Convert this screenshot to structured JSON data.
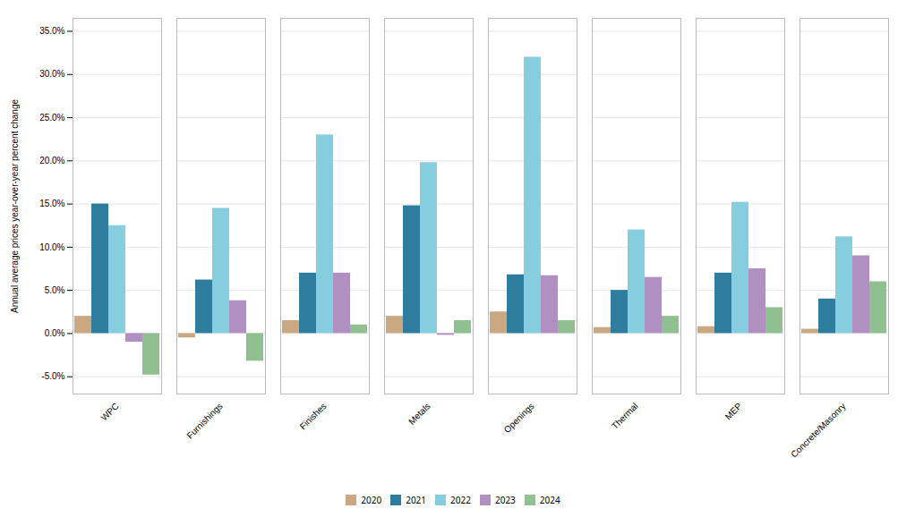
{
  "chart_data": {
    "type": "bar",
    "categories": [
      "WPC",
      "Furnishings",
      "Finishes",
      "Metals",
      "Openings",
      "Thermal",
      "MEP",
      "Concrete/Masonry"
    ],
    "series": [
      {
        "name": "2020",
        "color": "#c9a882",
        "values": [
          2.0,
          -0.5,
          1.5,
          2.0,
          2.5,
          0.7,
          0.8,
          0.5
        ]
      },
      {
        "name": "2021",
        "color": "#2e7d9e",
        "values": [
          15.0,
          6.2,
          7.0,
          14.8,
          6.8,
          5.0,
          7.0,
          4.0
        ]
      },
      {
        "name": "2022",
        "color": "#87cde0",
        "values": [
          12.5,
          14.5,
          23.0,
          19.8,
          32.0,
          12.0,
          15.2,
          11.2
        ]
      },
      {
        "name": "2023",
        "color": "#b090c0",
        "values": [
          -1.0,
          3.8,
          7.0,
          -0.2,
          6.7,
          6.5,
          7.5,
          9.0
        ]
      },
      {
        "name": "2024",
        "color": "#90c090",
        "values": [
          -4.8,
          -3.2,
          1.0,
          1.5,
          1.5,
          2.0,
          3.0,
          6.0
        ]
      }
    ],
    "ylabel": "Annual average prices year-over-year percent change",
    "ylim": [
      -7.0,
      36.5
    ],
    "yticks": [
      {
        "value": -5.0,
        "label": "-5.0%"
      },
      {
        "value": 0.0,
        "label": "0.0%"
      },
      {
        "value": 5.0,
        "label": "5.0%"
      },
      {
        "value": 10.0,
        "label": "10.0%"
      },
      {
        "value": 15.0,
        "label": "15.0%"
      },
      {
        "value": 20.0,
        "label": "20.0%"
      },
      {
        "value": 25.0,
        "label": "25.0%"
      },
      {
        "value": 30.0,
        "label": "30.0%"
      },
      {
        "value": 35.0,
        "label": "35.0%"
      }
    ],
    "grid": true,
    "legend": "bottom"
  }
}
